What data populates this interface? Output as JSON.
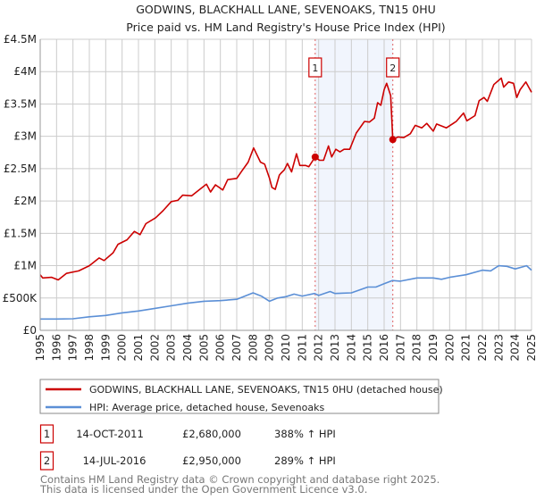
{
  "chart_data": {
    "type": "line",
    "title": "GODWINS, BLACKHALL LANE, SEVENOAKS, TN15 0HU",
    "subtitle": "Price paid vs. HM Land Registry's House Price Index (HPI)",
    "xlabel": "",
    "ylabel": "",
    "xlim": [
      1995,
      2025
    ],
    "ylim": [
      0,
      4500000
    ],
    "grid": true,
    "y_ticks": [
      {
        "value": 0,
        "label": "£0"
      },
      {
        "value": 500000,
        "label": "£500K"
      },
      {
        "value": 1000000,
        "label": "£1M"
      },
      {
        "value": 1500000,
        "label": "£1.5M"
      },
      {
        "value": 2000000,
        "label": "£2M"
      },
      {
        "value": 2500000,
        "label": "£2.5M"
      },
      {
        "value": 3000000,
        "label": "£3M"
      },
      {
        "value": 3500000,
        "label": "£3.5M"
      },
      {
        "value": 4000000,
        "label": "£4M"
      },
      {
        "value": 4500000,
        "label": "£4.5M"
      }
    ],
    "x_ticks": [
      "1995",
      "1996",
      "1997",
      "1998",
      "1999",
      "2000",
      "2001",
      "2002",
      "2003",
      "2004",
      "2005",
      "2006",
      "2007",
      "2008",
      "2009",
      "2010",
      "2011",
      "2012",
      "2013",
      "2014",
      "2015",
      "2016",
      "2017",
      "2018",
      "2019",
      "2020",
      "2021",
      "2022",
      "2023",
      "2024",
      "2025"
    ],
    "shaded_range": [
      2011.79,
      2016.53
    ],
    "series": [
      {
        "name": "GODWINS, BLACKHALL LANE, SEVENOAKS, TN15 0HU (detached house)",
        "color": "#cc0000",
        "x": [
          1995,
          1995.15,
          1995.7,
          1996.1,
          1996.6,
          1997.35,
          1998,
          1998.6,
          1998.9,
          1999.45,
          1999.75,
          2000.3,
          2000.75,
          2001.1,
          2001.45,
          2002.05,
          2002.5,
          2003,
          2003.4,
          2003.7,
          2004.25,
          2004.7,
          2005.15,
          2005.4,
          2005.7,
          2006.15,
          2006.45,
          2007,
          2007.3,
          2007.7,
          2008.03,
          2008.45,
          2008.7,
          2009,
          2009.15,
          2009.35,
          2009.6,
          2009.7,
          2009.9,
          2010.1,
          2010.35,
          2010.65,
          2010.85,
          2011.2,
          2011.4,
          2011.79,
          2012.05,
          2012.3,
          2012.6,
          2012.8,
          2013.05,
          2013.3,
          2013.55,
          2013.9,
          2014.3,
          2014.8,
          2015.1,
          2015.4,
          2015.6,
          2015.8,
          2016.0,
          2016.15,
          2016.4,
          2016.53,
          2016.85,
          2017.2,
          2017.6,
          2017.9,
          2018.3,
          2018.6,
          2019.0,
          2019.2,
          2019.8,
          2020.4,
          2020.85,
          2021.05,
          2021.55,
          2021.8,
          2022.1,
          2022.3,
          2022.7,
          2023.15,
          2023.3,
          2023.6,
          2023.9,
          2024.1,
          2024.3,
          2024.65,
          2025
        ],
        "y": [
          860000,
          810000,
          820000,
          780000,
          880000,
          920000,
          1000000,
          1120000,
          1080000,
          1200000,
          1330000,
          1400000,
          1530000,
          1480000,
          1650000,
          1740000,
          1850000,
          1990000,
          2010000,
          2090000,
          2080000,
          2170000,
          2260000,
          2140000,
          2250000,
          2170000,
          2330000,
          2350000,
          2460000,
          2600000,
          2820000,
          2600000,
          2570000,
          2350000,
          2210000,
          2180000,
          2400000,
          2430000,
          2480000,
          2580000,
          2450000,
          2730000,
          2550000,
          2550000,
          2530000,
          2680000,
          2630000,
          2630000,
          2850000,
          2680000,
          2800000,
          2760000,
          2800000,
          2800000,
          3050000,
          3230000,
          3220000,
          3280000,
          3520000,
          3480000,
          3720000,
          3820000,
          3630000,
          2950000,
          2990000,
          2980000,
          3040000,
          3170000,
          3130000,
          3200000,
          3080000,
          3190000,
          3130000,
          3230000,
          3360000,
          3240000,
          3320000,
          3550000,
          3600000,
          3540000,
          3800000,
          3900000,
          3760000,
          3840000,
          3820000,
          3600000,
          3720000,
          3840000,
          3680000
        ]
      },
      {
        "name": "HPI: Average price, detached house, Sevenoaks",
        "color": "#5b8fd6",
        "x": [
          1995,
          1996,
          1997,
          1998,
          1999,
          2000,
          2001,
          2002,
          2003,
          2004,
          2005,
          2006,
          2007,
          2008,
          2008.5,
          2009,
          2009.5,
          2010,
          2010.5,
          2011,
          2011.75,
          2012,
          2012.7,
          2013,
          2014,
          2015,
          2015.5,
          2016,
          2016.5,
          2017,
          2018,
          2019,
          2019.5,
          2020,
          2021,
          2022,
          2022.5,
          2023,
          2023.5,
          2024,
          2024.7,
          2025
        ],
        "y": [
          175000,
          175000,
          180000,
          210000,
          230000,
          270000,
          300000,
          340000,
          380000,
          420000,
          450000,
          460000,
          480000,
          580000,
          530000,
          450000,
          500000,
          520000,
          560000,
          530000,
          570000,
          540000,
          600000,
          570000,
          580000,
          670000,
          670000,
          720000,
          770000,
          760000,
          810000,
          810000,
          790000,
          820000,
          860000,
          930000,
          920000,
          1000000,
          990000,
          950000,
          1000000,
          930000
        ]
      }
    ],
    "annotations": [
      {
        "label": "1",
        "x": 2011.79,
        "y": 2680000
      },
      {
        "label": "2",
        "x": 2016.53,
        "y": 2950000
      }
    ]
  },
  "transactions": [
    {
      "num": "1",
      "date": "14-OCT-2011",
      "price": "£2,680,000",
      "hpi": "388% ↑ HPI"
    },
    {
      "num": "2",
      "date": "14-JUL-2016",
      "price": "£2,950,000",
      "hpi": "289% ↑ HPI"
    }
  ],
  "footer": {
    "line1": "Contains HM Land Registry data © Crown copyright and database right 2025.",
    "line2": "This data is licensed under the Open Government Licence v3.0."
  }
}
